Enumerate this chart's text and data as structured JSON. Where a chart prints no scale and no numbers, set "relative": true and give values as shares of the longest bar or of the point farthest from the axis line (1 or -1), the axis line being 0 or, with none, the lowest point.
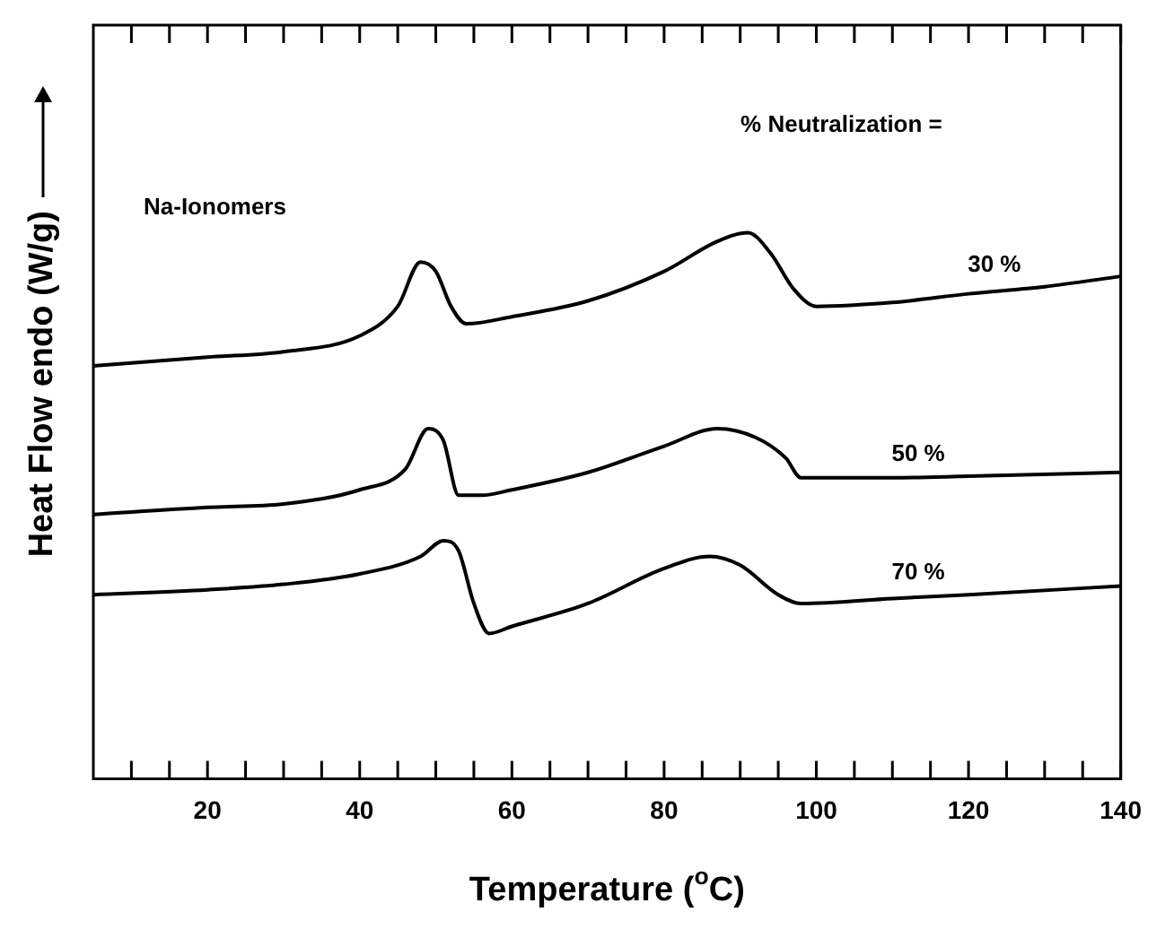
{
  "chart_data": {
    "type": "line",
    "relative": true,
    "xlabel": "Temperature ($^{o}$C)",
    "ylabel": "Heat Flow endo (W/g)",
    "annotations": [
      "% Neutralization =",
      "Na-Ionomers"
    ],
    "xlim": [
      5,
      140
    ],
    "xticks": [
      {
        "value": 10,
        "label": null
      },
      {
        "value": 15,
        "label": null
      },
      20,
      {
        "value": 25,
        "label": null
      },
      {
        "value": 30,
        "label": null
      },
      {
        "value": 35,
        "label": null
      },
      40,
      {
        "value": 45,
        "label": null
      },
      {
        "value": 50,
        "label": null
      },
      {
        "value": 55,
        "label": null
      },
      60,
      {
        "value": 65,
        "label": null
      },
      {
        "value": 70,
        "label": null
      },
      {
        "value": 75,
        "label": null
      },
      80,
      {
        "value": 85,
        "label": null
      },
      {
        "value": 90,
        "label": null
      },
      {
        "value": 95,
        "label": null
      },
      100,
      {
        "value": 105,
        "label": null
      },
      {
        "value": 110,
        "label": null
      },
      {
        "value": 115,
        "label": null
      },
      120,
      {
        "value": 125,
        "label": null
      },
      {
        "value": 130,
        "label": null
      },
      {
        "value": 135,
        "label": null
      },
      140
    ],
    "grid": false,
    "legend": false,
    "marker": "none",
    "line_style": "solid",
    "tick_labels": "x",
    "series": [
      {
        "name": "30 %",
        "color": "#000000",
        "x": [
          5,
          20,
          30,
          40,
          45,
          48,
          50,
          52,
          54,
          60,
          70,
          80,
          87,
          91,
          94,
          97,
          100,
          110,
          120,
          130,
          140
        ],
        "values": [
          0.756,
          0.772,
          0.782,
          0.811,
          0.865,
          0.946,
          0.929,
          0.865,
          0.833,
          0.846,
          0.875,
          0.929,
          0.984,
          1,
          0.962,
          0.897,
          0.865,
          0.872,
          0.888,
          0.901,
          0.92
        ]
      },
      {
        "name": "50 %",
        "color": "#000000",
        "x": [
          5,
          20,
          30,
          40,
          46,
          49,
          51,
          53,
          56,
          60,
          70,
          80,
          87,
          92,
          96,
          98,
          110,
          120,
          140
        ],
        "values": [
          0.484,
          0.497,
          0.503,
          0.529,
          0.567,
          0.641,
          0.619,
          0.519,
          0.519,
          0.529,
          0.561,
          0.609,
          0.641,
          0.625,
          0.587,
          0.551,
          0.551,
          0.554,
          0.561
        ]
      },
      {
        "name": "70 %",
        "color": "#000000",
        "x": [
          5,
          20,
          30,
          40,
          48,
          51,
          53,
          55,
          57,
          60,
          70,
          80,
          86,
          90,
          95,
          98,
          110,
          120,
          140
        ],
        "values": [
          0.337,
          0.346,
          0.356,
          0.375,
          0.407,
          0.436,
          0.417,
          0.321,
          0.266,
          0.279,
          0.321,
          0.385,
          0.407,
          0.391,
          0.337,
          0.321,
          0.33,
          0.337,
          0.353
        ]
      }
    ]
  }
}
